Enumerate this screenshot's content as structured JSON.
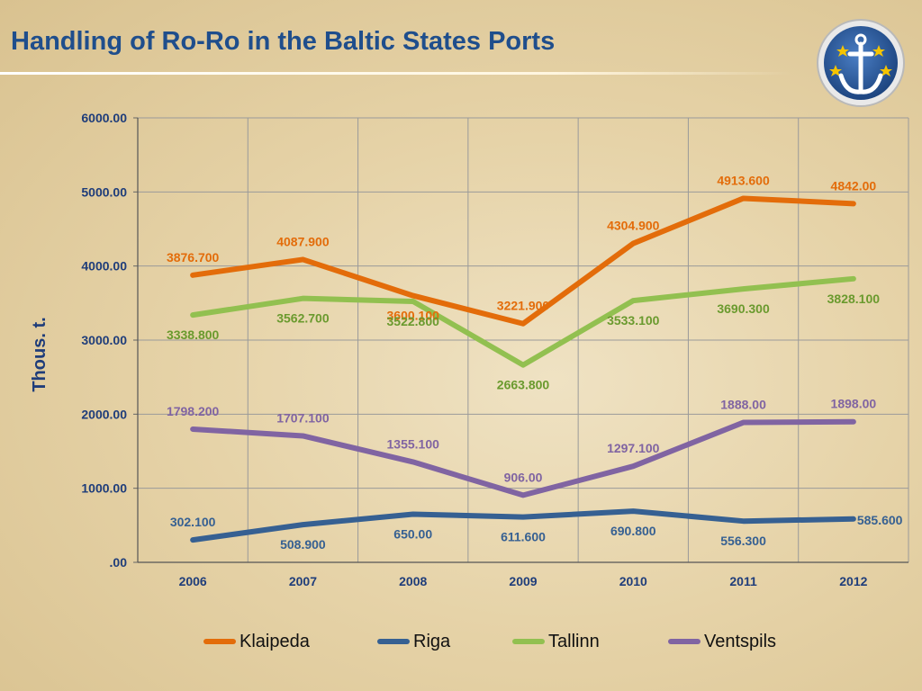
{
  "slide": {
    "title": "Handling of Ro-Ro in the Baltic States Ports"
  },
  "colors": {
    "title": "#1f4e8c",
    "axis_text": "#1f3d7a",
    "grid": "#9a9a9a"
  },
  "chart_data": {
    "type": "line",
    "title": "",
    "xlabel": "",
    "ylabel": "Thous. t.",
    "ylim": [
      0,
      6000
    ],
    "yticks": [
      {
        "value": 0,
        "label": ".00"
      },
      {
        "value": 1000,
        "label": "1000.00"
      },
      {
        "value": 2000,
        "label": "2000.00"
      },
      {
        "value": 3000,
        "label": "3000.00"
      },
      {
        "value": 4000,
        "label": "4000.00"
      },
      {
        "value": 5000,
        "label": "5000.00"
      },
      {
        "value": 6000,
        "label": "6000.00"
      }
    ],
    "categories": [
      "2006",
      "2007",
      "2008",
      "2009",
      "2010",
      "2011",
      "2012"
    ],
    "grid": true,
    "legend": "bottom",
    "series": [
      {
        "name": "Klaipeda",
        "color": "#e36c0a",
        "label_color": "#e36c0a",
        "values": [
          3876.7,
          4087.9,
          3600.1,
          3221.9,
          4304.9,
          4913.6,
          4842.0
        ],
        "labels": [
          "3876.700",
          "4087.900",
          "3600.100",
          "3221.900",
          "4304.900",
          "4913.600",
          "4842.00"
        ],
        "label_pos": [
          "above",
          "above",
          "below",
          "above",
          "above",
          "above",
          "above"
        ]
      },
      {
        "name": "Riga",
        "color": "#366092",
        "label_color": "#366092",
        "values": [
          302.1,
          508.9,
          650.0,
          611.6,
          690.8,
          556.3,
          585.6
        ],
        "labels": [
          "302.100",
          "508.900",
          "650.00",
          "611.600",
          "690.800",
          "556.300",
          "585.600"
        ],
        "label_pos": [
          "above",
          "below",
          "below",
          "below",
          "below",
          "below",
          "right"
        ]
      },
      {
        "name": "Tallinn",
        "color": "#92c050",
        "label_color": "#6a9a2e",
        "values": [
          3338.8,
          3562.7,
          3522.8,
          2663.8,
          3533.1,
          3690.3,
          3828.1
        ],
        "labels": [
          "3338.800",
          "3562.700",
          "3522.800",
          "2663.800",
          "3533.100",
          "3690.300",
          "3828.100"
        ],
        "label_pos": [
          "below",
          "below",
          "below",
          "below",
          "below",
          "below",
          "below"
        ]
      },
      {
        "name": "Ventspils",
        "color": "#8064a2",
        "label_color": "#8064a2",
        "values": [
          1798.2,
          1707.1,
          1355.1,
          906.0,
          1297.1,
          1888.0,
          1898.0
        ],
        "labels": [
          "1798.200",
          "1707.100",
          "1355.100",
          "906.00",
          "1297.100",
          "1888.00",
          "1898.00"
        ],
        "label_pos": [
          "above",
          "above",
          "above",
          "above",
          "above",
          "above",
          "above"
        ]
      }
    ]
  }
}
